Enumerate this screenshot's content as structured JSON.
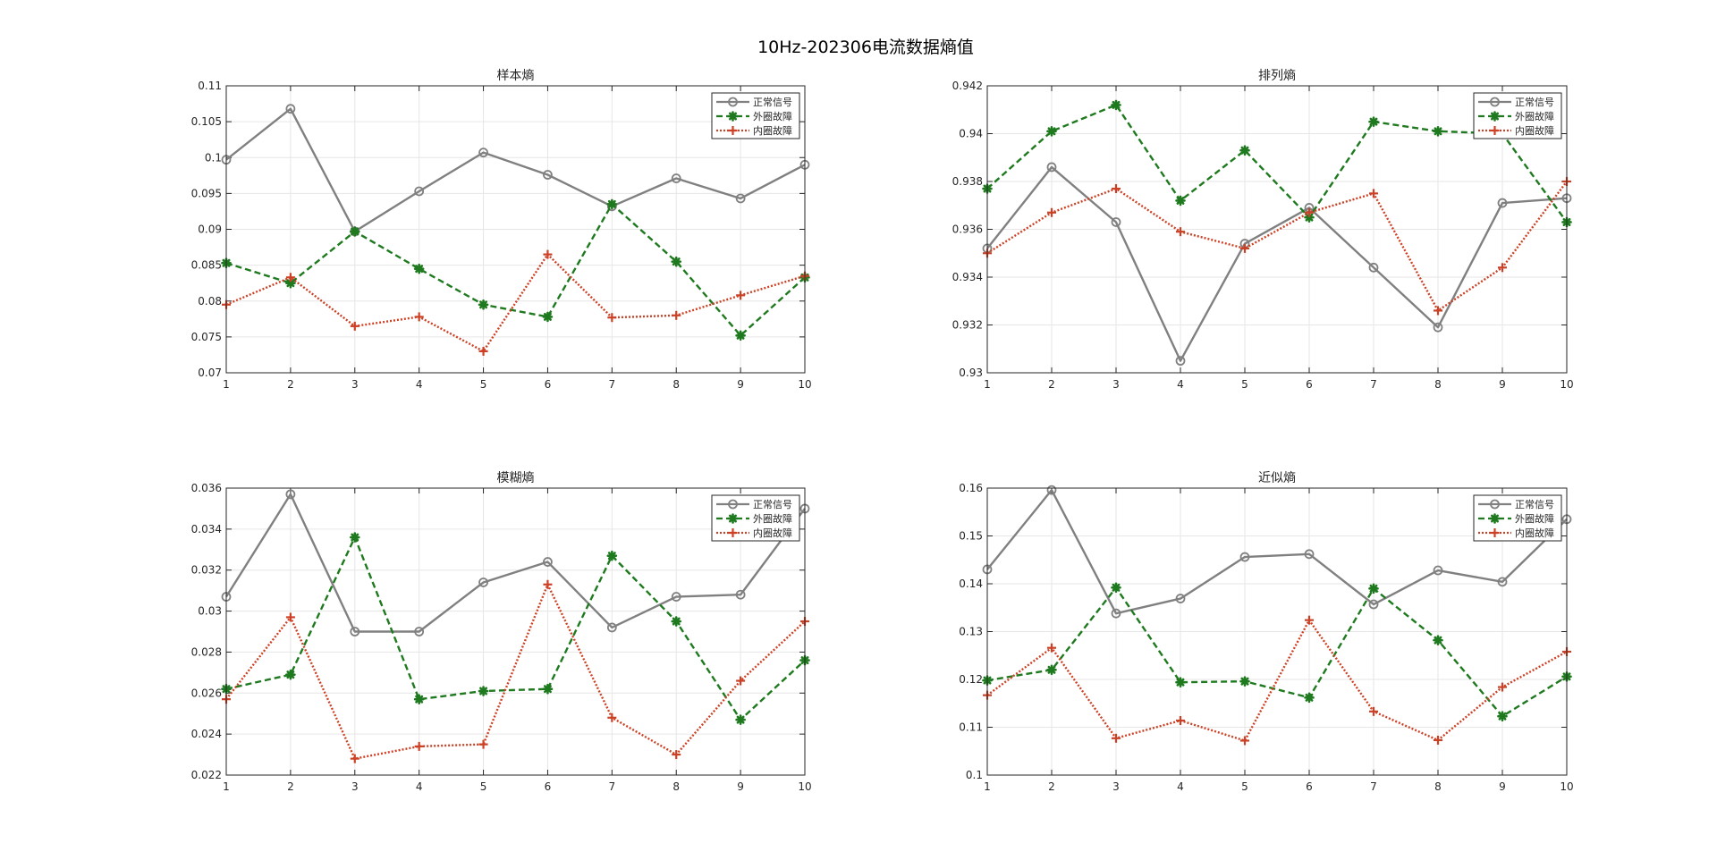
{
  "figure": {
    "title": "10Hz-202306电流数据熵值"
  },
  "colors": {
    "normal": "#808080",
    "outer": "#1f7a1f",
    "inner": "#cc4125",
    "grid": "#e6e6e6",
    "axis": "#262626"
  },
  "chart_data": [
    {
      "type": "line",
      "title": "样本熵",
      "x": [
        1,
        2,
        3,
        4,
        5,
        6,
        7,
        8,
        9,
        10
      ],
      "xlim": [
        1,
        10
      ],
      "ylim": [
        0.07,
        0.11
      ],
      "yticks": [
        0.07,
        0.075,
        0.08,
        0.085,
        0.09,
        0.095,
        0.1,
        0.105,
        0.11
      ],
      "yticklabels": [
        "0.07",
        "0.075",
        "0.08",
        "0.085",
        "0.09",
        "0.095",
        "0.1",
        "0.105",
        "0.11"
      ],
      "grid": true,
      "legend": "top-right",
      "series": [
        {
          "name": "正常信号",
          "style": "solid-circle",
          "values": [
            0.0997,
            0.1068,
            0.0897,
            0.0953,
            0.1007,
            0.0976,
            0.0932,
            0.0971,
            0.0943,
            0.099
          ]
        },
        {
          "name": "外圈故障",
          "style": "dashed-star",
          "values": [
            0.0853,
            0.0825,
            0.0897,
            0.0845,
            0.0795,
            0.0778,
            0.0935,
            0.0855,
            0.0752,
            0.0833
          ]
        },
        {
          "name": "内圈故障",
          "style": "dotted-plus",
          "values": [
            0.0795,
            0.0833,
            0.0765,
            0.0778,
            0.073,
            0.0865,
            0.0777,
            0.078,
            0.0808,
            0.0835
          ]
        }
      ]
    },
    {
      "type": "line",
      "title": "排列熵",
      "x": [
        1,
        2,
        3,
        4,
        5,
        6,
        7,
        8,
        9,
        10
      ],
      "xlim": [
        1,
        10
      ],
      "ylim": [
        0.93,
        0.942
      ],
      "yticks": [
        0.93,
        0.932,
        0.934,
        0.936,
        0.938,
        0.94,
        0.942
      ],
      "yticklabels": [
        "0.93",
        "0.932",
        "0.934",
        "0.936",
        "0.938",
        "0.94",
        "0.942"
      ],
      "grid": true,
      "legend": "top-right",
      "series": [
        {
          "name": "正常信号",
          "style": "solid-circle",
          "values": [
            0.9352,
            0.9386,
            0.9363,
            0.9305,
            0.9354,
            0.9369,
            0.9344,
            0.9319,
            0.9371,
            0.9373
          ]
        },
        {
          "name": "外圈故障",
          "style": "dashed-star",
          "values": [
            0.9377,
            0.9401,
            0.9412,
            0.9372,
            0.9393,
            0.9365,
            0.9405,
            0.9401,
            0.94,
            0.9363
          ]
        },
        {
          "name": "内圈故障",
          "style": "dotted-plus",
          "values": [
            0.935,
            0.9367,
            0.9377,
            0.9359,
            0.9352,
            0.9367,
            0.9375,
            0.9326,
            0.9344,
            0.938
          ]
        }
      ]
    },
    {
      "type": "line",
      "title": "模糊熵",
      "x": [
        1,
        2,
        3,
        4,
        5,
        6,
        7,
        8,
        9,
        10
      ],
      "xlim": [
        1,
        10
      ],
      "ylim": [
        0.022,
        0.036
      ],
      "yticks": [
        0.022,
        0.024,
        0.026,
        0.028,
        0.03,
        0.032,
        0.034,
        0.036
      ],
      "yticklabels": [
        "0.022",
        "0.024",
        "0.026",
        "0.028",
        "0.03",
        "0.032",
        "0.034",
        "0.036"
      ],
      "grid": true,
      "legend": "top-right",
      "series": [
        {
          "name": "正常信号",
          "style": "solid-circle",
          "values": [
            0.0307,
            0.0357,
            0.029,
            0.029,
            0.0314,
            0.0324,
            0.0292,
            0.0307,
            0.0308,
            0.035
          ]
        },
        {
          "name": "外圈故障",
          "style": "dashed-star",
          "values": [
            0.0262,
            0.0269,
            0.0336,
            0.0257,
            0.0261,
            0.0262,
            0.0327,
            0.0295,
            0.0247,
            0.0276
          ]
        },
        {
          "name": "内圈故障",
          "style": "dotted-plus",
          "values": [
            0.0257,
            0.0297,
            0.0228,
            0.0234,
            0.0235,
            0.0313,
            0.0248,
            0.023,
            0.0266,
            0.0295
          ]
        }
      ]
    },
    {
      "type": "line",
      "title": "近似熵",
      "x": [
        1,
        2,
        3,
        4,
        5,
        6,
        7,
        8,
        9,
        10
      ],
      "xlim": [
        1,
        10
      ],
      "ylim": [
        0.1,
        0.16
      ],
      "yticks": [
        0.1,
        0.11,
        0.12,
        0.13,
        0.14,
        0.15,
        0.16
      ],
      "yticklabels": [
        "0.1",
        "0.11",
        "0.12",
        "0.13",
        "0.14",
        "0.15",
        "0.16"
      ],
      "grid": true,
      "legend": "top-right",
      "series": [
        {
          "name": "正常信号",
          "style": "solid-circle",
          "values": [
            0.143,
            0.1596,
            0.1338,
            0.1369,
            0.1456,
            0.1462,
            0.1357,
            0.1428,
            0.1404,
            0.1535
          ]
        },
        {
          "name": "外圈故障",
          "style": "dashed-star",
          "values": [
            0.1198,
            0.122,
            0.1392,
            0.1194,
            0.1196,
            0.1162,
            0.139,
            0.1282,
            0.1123,
            0.1206
          ]
        },
        {
          "name": "内圈故障",
          "style": "dotted-plus",
          "values": [
            0.1167,
            0.1266,
            0.1077,
            0.1114,
            0.1072,
            0.1324,
            0.1133,
            0.1073,
            0.1184,
            0.1258
          ]
        }
      ]
    }
  ]
}
